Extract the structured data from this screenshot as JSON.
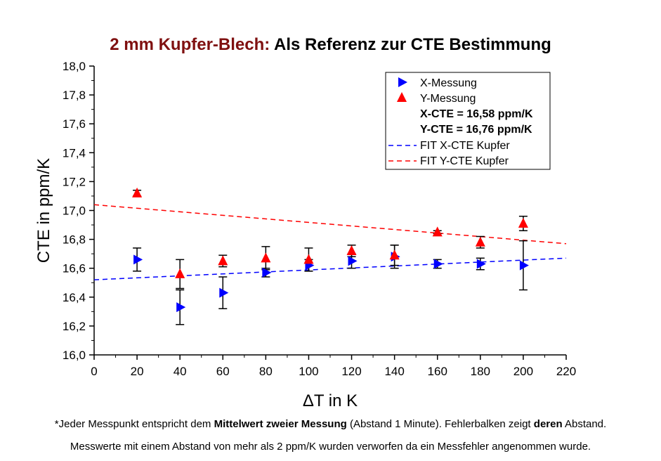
{
  "title": {
    "part1": "2 mm Kupfer-Blech:",
    "part2": " Als Referenz zur CTE Bestimmung"
  },
  "footnote1": {
    "a": "*Jeder Messpunkt entspricht dem ",
    "b": "Mittelwert zweier Messung",
    "c": " (Abstand 1 Minute). Fehlerbalken zeigt ",
    "d": "deren",
    "e": " Abstand."
  },
  "footnote2": "Messwerte mit einem Abstand von mehr als 2 ppm/K wurden verworfen da ein Messfehler angenommen wurde.",
  "colors": {
    "x_series": "#0000ff",
    "y_series": "#ff0000",
    "title_part1": "#7f1010"
  },
  "chart_data": {
    "type": "scatter",
    "xlabel": "ΔT in K",
    "ylabel": "CTE in ppm/K",
    "xlim": [
      0,
      220
    ],
    "ylim": [
      16.0,
      18.0
    ],
    "xticks": [
      "0",
      "20",
      "40",
      "60",
      "80",
      "100",
      "120",
      "140",
      "160",
      "180",
      "200",
      "220"
    ],
    "yticks": [
      "16,0",
      "16,2",
      "16,4",
      "16,6",
      "16,8",
      "17,0",
      "17,2",
      "17,4",
      "17,6",
      "17,8",
      "18,0"
    ],
    "grid": false,
    "legend_position": "top-right",
    "series": [
      {
        "name": "X-Messung",
        "marker": "triangle-right",
        "color": "#0000ff",
        "x": [
          20,
          40,
          60,
          80,
          100,
          120,
          140,
          160,
          180,
          200
        ],
        "y": [
          16.66,
          16.33,
          16.43,
          16.57,
          16.62,
          16.65,
          16.68,
          16.63,
          16.63,
          16.62
        ],
        "err": [
          0.08,
          0.12,
          0.11,
          0.03,
          0.04,
          0.05,
          0.08,
          0.03,
          0.04,
          0.17
        ]
      },
      {
        "name": "Y-Messung",
        "marker": "triangle-up",
        "color": "#ff0000",
        "x": [
          20,
          40,
          60,
          80,
          100,
          120,
          140,
          160,
          180,
          200
        ],
        "y": [
          17.12,
          16.56,
          16.65,
          16.67,
          16.66,
          16.72,
          16.69,
          16.85,
          16.78,
          16.91
        ],
        "err": [
          0.02,
          0.1,
          0.04,
          0.08,
          0.08,
          0.04,
          0.07,
          0.01,
          0.04,
          0.05
        ]
      }
    ],
    "fits": [
      {
        "name": "FIT X-CTE Kupfer",
        "color": "#0000ff",
        "x": [
          0,
          220
        ],
        "y": [
          16.52,
          16.67
        ]
      },
      {
        "name": "FIT Y-CTE Kupfer",
        "color": "#ff0000",
        "x": [
          0,
          220
        ],
        "y": [
          17.04,
          16.77
        ]
      }
    ],
    "legend_text": [
      "X-CTE = 16,58 ppm/K",
      "Y-CTE = 16,76 ppm/K"
    ]
  }
}
